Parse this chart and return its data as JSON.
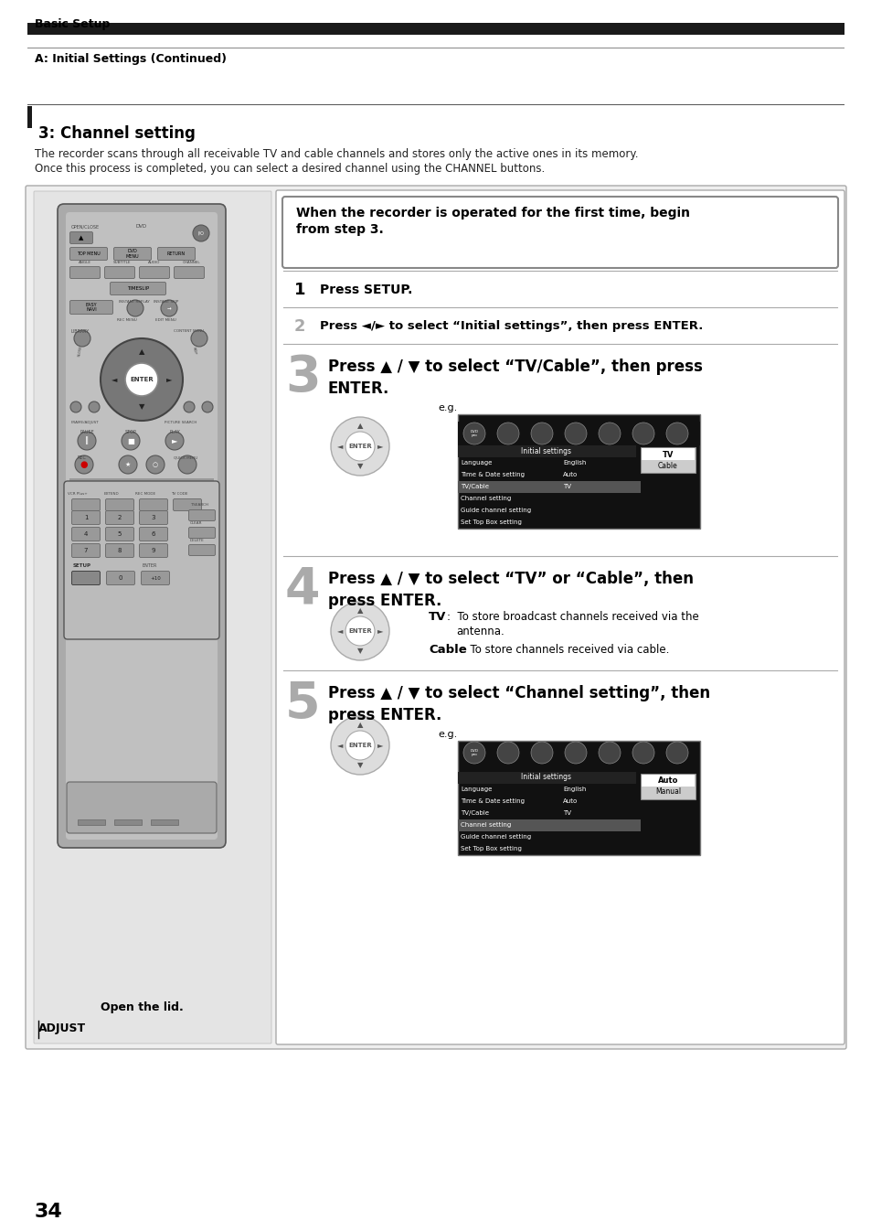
{
  "page_bg": "#ffffff",
  "header_title": "Basic Setup",
  "header_bar_color": "#1a1a1a",
  "section_label": "A: Initial Settings (Continued)",
  "section_number": "3: Channel setting",
  "section_desc1": "The recorder scans through all receivable TV and cable channels and stores only the active ones in its memory.",
  "section_desc2": "Once this process is completed, you can select a desired channel using the CHANNEL buttons.",
  "intro_box_text": "When the recorder is operated for the first time, begin\nfrom step 3.",
  "step1_num": "1",
  "step1_text": "Press SETUP.",
  "step2_num": "2",
  "step2_text": "Press ◄/► to select “Initial settings”, then press ENTER.",
  "step3_num": "3",
  "step3_text": "Press ▲ / ▼ to select “TV/Cable”, then press\nENTER.",
  "step4_num": "4",
  "step4_text": "Press ▲ / ▼ to select “TV” or “Cable”, then\npress ENTER.",
  "step4_tv_label": "TV",
  "step4_tv_desc": "     :  To store broadcast channels received via the\n           antenna.",
  "step4_cable_label": "Cable",
  "step4_cable_desc": "  :  To store channels received via cable.",
  "step5_num": "5",
  "step5_text": "Press ▲ / ▼ to select “Channel setting”, then\npress ENTER.",
  "page_number": "34",
  "open_lid_text": "Open the lid.",
  "adjust_text": "ADJUST",
  "menu3_items": [
    [
      "Language",
      "English"
    ],
    [
      "Time & Date setting",
      "Auto"
    ],
    [
      "TV/Cable",
      "TV"
    ],
    [
      "Channel setting",
      ""
    ],
    [
      "Guide channel setting",
      ""
    ],
    [
      "Set Top Box setting",
      ""
    ]
  ],
  "menu3_highlight": "TV/Cable",
  "menu5_items": [
    [
      "Language",
      "English"
    ],
    [
      "Time & Date setting",
      "Auto"
    ],
    [
      "TV/Cable",
      "TV"
    ],
    [
      "Channel setting",
      ""
    ],
    [
      "Guide channel setting",
      ""
    ],
    [
      "Set Top Box setting",
      ""
    ]
  ],
  "menu5_highlight": "Channel setting"
}
